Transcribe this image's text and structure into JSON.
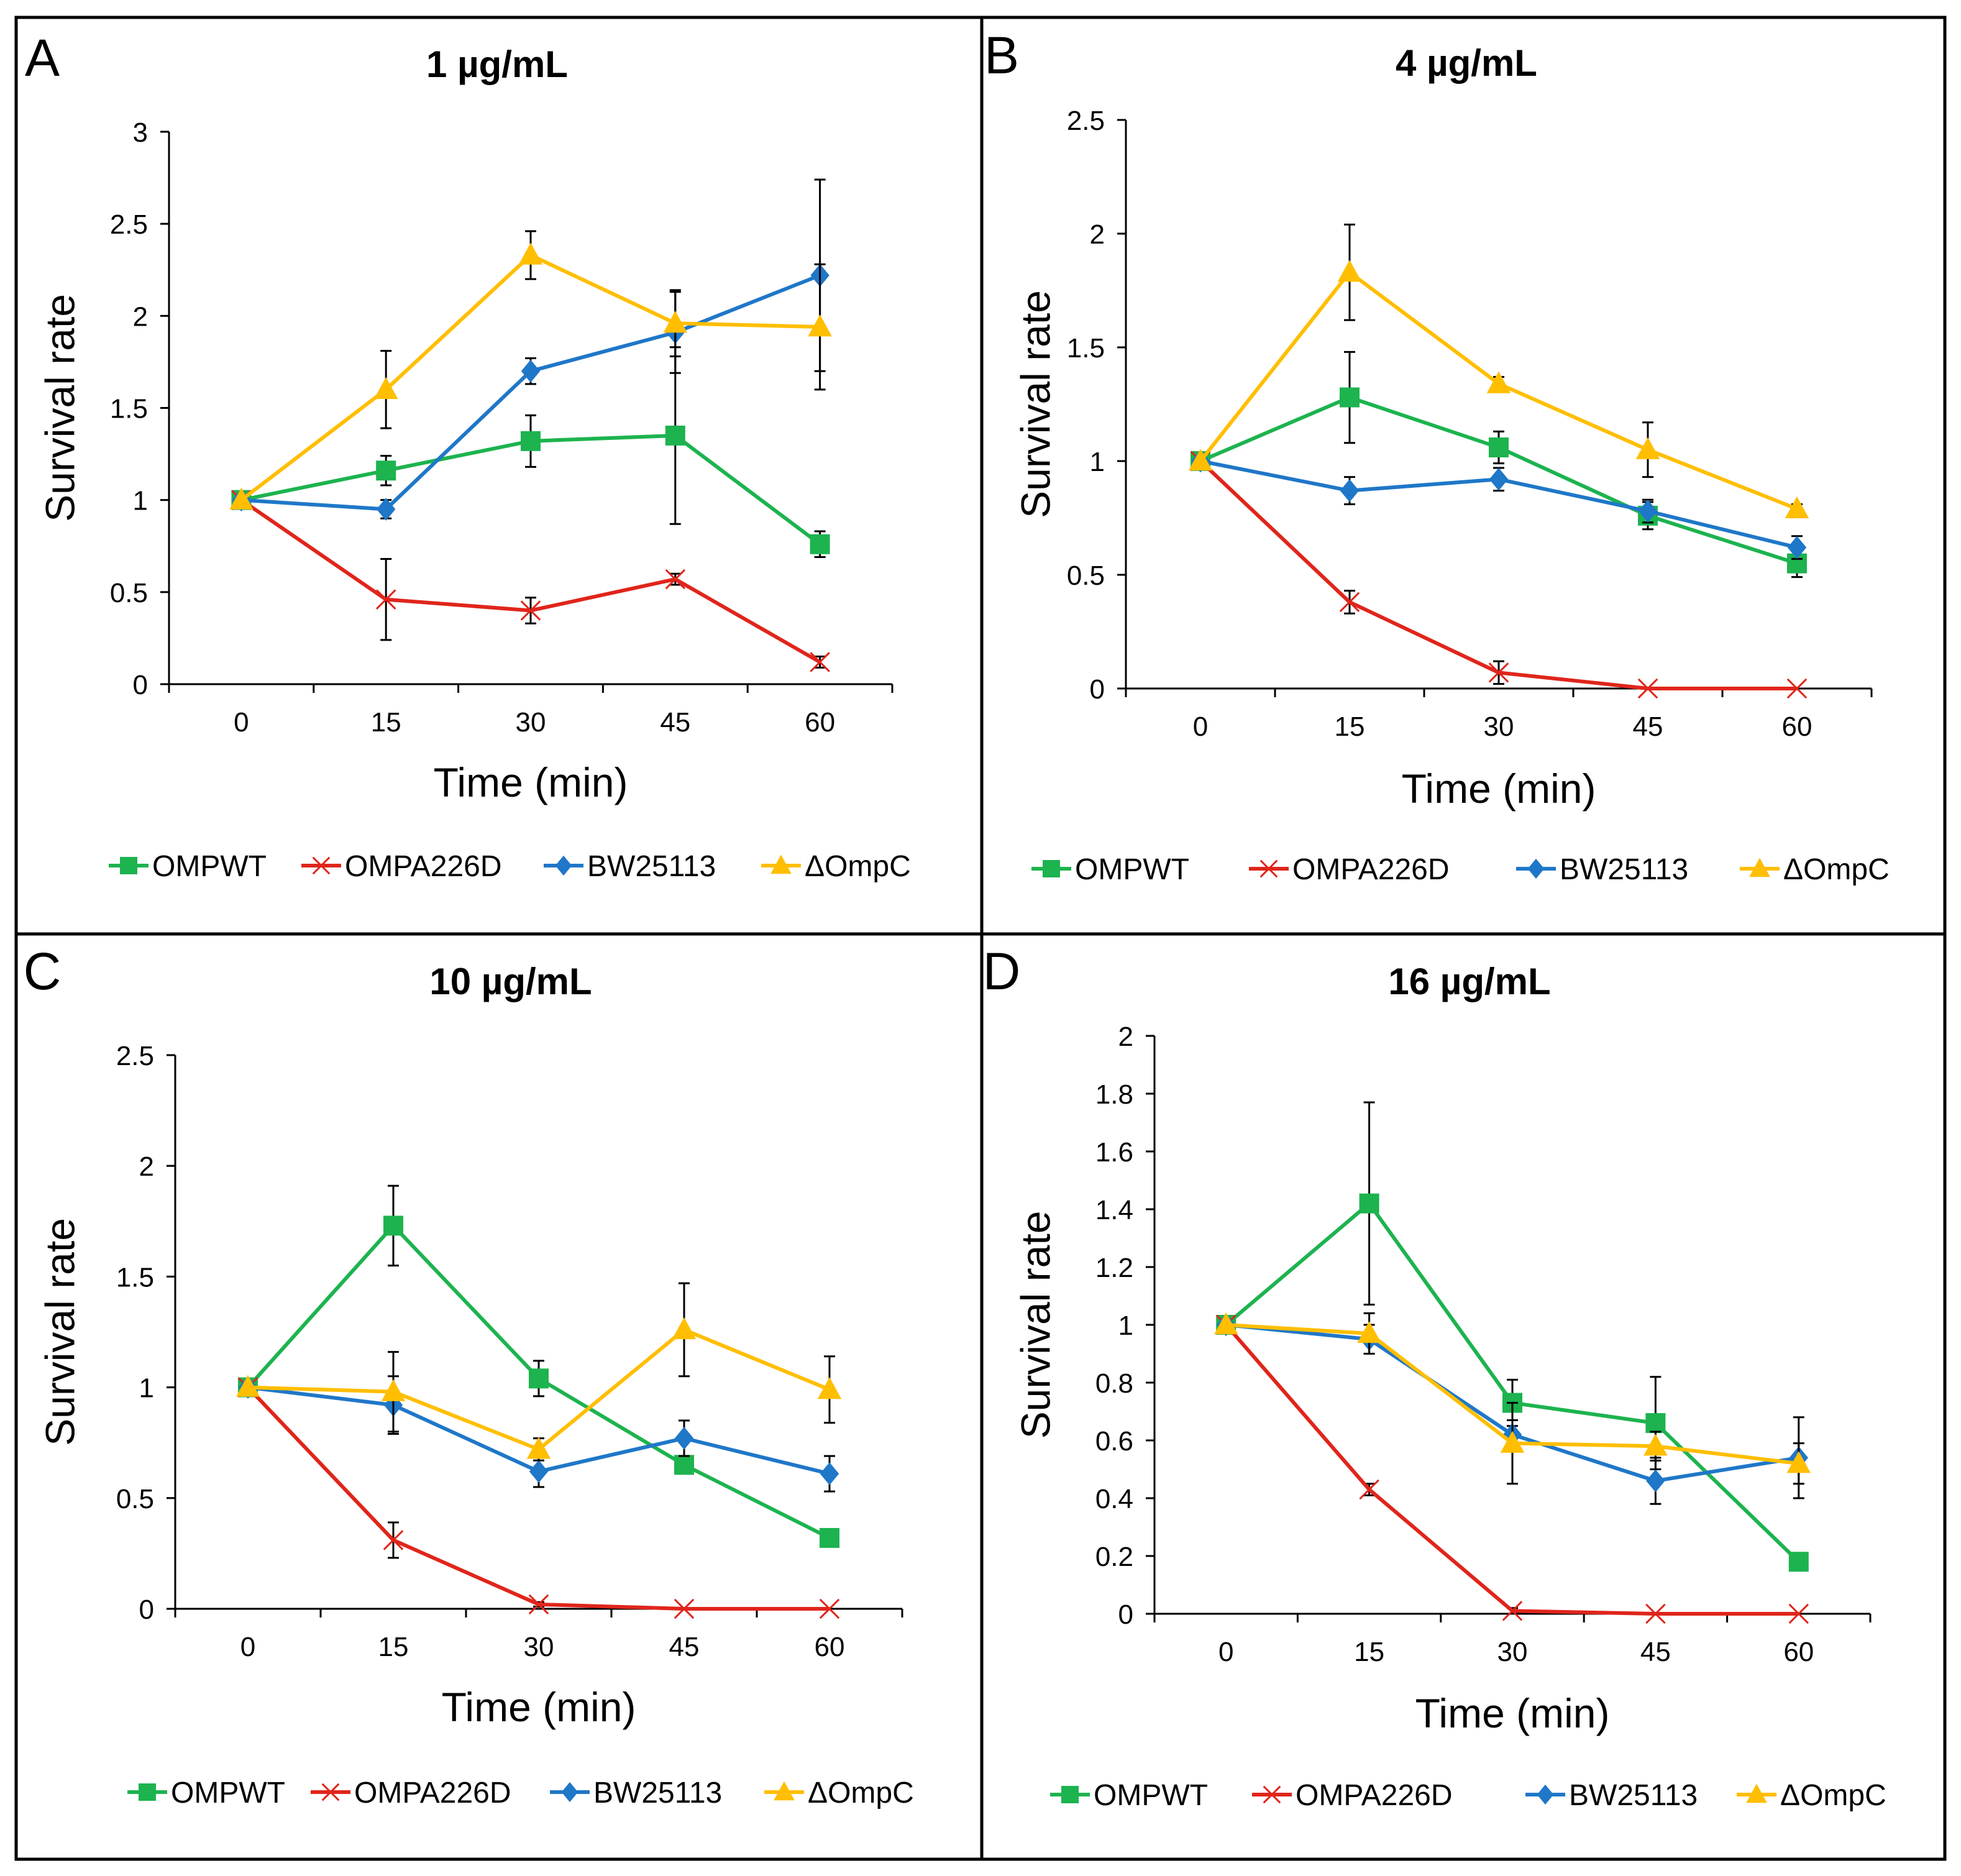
{
  "figure": {
    "series_styles": [
      {
        "name": "OMPWT",
        "color": "#1db34f",
        "marker": "square"
      },
      {
        "name": "OMPA226D",
        "color": "#e0251b",
        "marker": "x"
      },
      {
        "name": "BW25113",
        "color": "#1f77c8",
        "marker": "diamond"
      },
      {
        "name": "ΔOmpC",
        "color": "#ffbe00",
        "marker": "triangle"
      }
    ]
  },
  "chart_data": [
    {
      "panel_label": "A",
      "type": "line",
      "title": "1 µg/mL",
      "xlabel": "Time (min)",
      "ylabel": "Survival rate",
      "categories": [
        "0",
        "15",
        "30",
        "45",
        "60"
      ],
      "ylim": [
        0,
        3
      ],
      "yticks": [
        "0",
        "0.5",
        "1",
        "1.5",
        "2",
        "2.5",
        "3"
      ],
      "legend_position": "bottom",
      "series": [
        {
          "name": "OMPWT",
          "values": [
            1.0,
            1.16,
            1.32,
            1.35,
            0.76
          ],
          "errors": [
            0,
            0.08,
            0.14,
            0.48,
            0.07
          ]
        },
        {
          "name": "OMPA226D",
          "values": [
            1.0,
            0.46,
            0.4,
            0.57,
            0.12
          ],
          "errors": [
            0,
            0.22,
            0.07,
            0.03,
            0.03
          ]
        },
        {
          "name": "BW25113",
          "values": [
            1.0,
            0.95,
            1.7,
            1.91,
            2.22
          ],
          "errors": [
            0,
            0.05,
            0.07,
            0.22,
            0.52
          ]
        },
        {
          "name": "ΔOmpC",
          "values": [
            1.0,
            1.6,
            2.33,
            1.96,
            1.94
          ],
          "errors": [
            0,
            0.21,
            0.13,
            0.18,
            0.34
          ]
        }
      ]
    },
    {
      "panel_label": "B",
      "type": "line",
      "title": "4 µg/mL",
      "xlabel": "Time (min)",
      "ylabel": "Survival rate",
      "categories": [
        "0",
        "15",
        "30",
        "45",
        "60"
      ],
      "ylim": [
        0,
        2.5
      ],
      "yticks": [
        "0",
        "0.5",
        "1",
        "1.5",
        "2",
        "2.5"
      ],
      "legend_position": "bottom",
      "series": [
        {
          "name": "OMPWT",
          "values": [
            1.0,
            1.28,
            1.06,
            0.76,
            0.55
          ],
          "errors": [
            0,
            0.2,
            0.07,
            0.06,
            0.06
          ]
        },
        {
          "name": "OMPA226D",
          "values": [
            1.0,
            0.38,
            0.07,
            0.0,
            0.0
          ],
          "errors": [
            0,
            0.05,
            0.05,
            0,
            0
          ]
        },
        {
          "name": "BW25113",
          "values": [
            1.0,
            0.87,
            0.92,
            0.78,
            0.62
          ],
          "errors": [
            0,
            0.06,
            0.05,
            0.05,
            0.05
          ]
        },
        {
          "name": "ΔOmpC",
          "values": [
            1.0,
            1.83,
            1.34,
            1.05,
            0.79
          ],
          "errors": [
            0,
            0.21,
            0.03,
            0.12,
            0.02
          ]
        }
      ]
    },
    {
      "panel_label": "C",
      "type": "line",
      "title": "10 µg/mL",
      "xlabel": "Time (min)",
      "ylabel": "Survival rate",
      "categories": [
        "0",
        "15",
        "30",
        "45",
        "60"
      ],
      "ylim": [
        0,
        2.5
      ],
      "yticks": [
        "0",
        "0.5",
        "1",
        "1.5",
        "2",
        "2.5"
      ],
      "legend_position": "bottom",
      "series": [
        {
          "name": "OMPWT",
          "values": [
            1.0,
            1.73,
            1.04,
            0.65,
            0.32
          ],
          "errors": [
            0,
            0.18,
            0.08,
            0.02,
            0.02
          ]
        },
        {
          "name": "OMPA226D",
          "values": [
            1.0,
            0.31,
            0.02,
            0.0,
            0.0
          ],
          "errors": [
            0,
            0.08,
            0.01,
            0,
            0
          ]
        },
        {
          "name": "BW25113",
          "values": [
            1.0,
            0.92,
            0.62,
            0.77,
            0.61
          ],
          "errors": [
            0,
            0.13,
            0.07,
            0.08,
            0.08
          ]
        },
        {
          "name": "ΔOmpC",
          "values": [
            1.0,
            0.98,
            0.72,
            1.26,
            0.99
          ],
          "errors": [
            0,
            0.18,
            0.05,
            0.21,
            0.15
          ]
        }
      ]
    },
    {
      "panel_label": "D",
      "type": "line",
      "title": "16 µg/mL",
      "xlabel": "Time (min)",
      "ylabel": "Survival rate",
      "categories": [
        "0",
        "15",
        "30",
        "45",
        "60"
      ],
      "ylim": [
        0,
        2
      ],
      "yticks": [
        "0",
        "0.2",
        "0.4",
        "0.6",
        "0.8",
        "1",
        "1.2",
        "1.4",
        "1.6",
        "1.8",
        "2"
      ],
      "legend_position": "bottom",
      "series": [
        {
          "name": "OMPWT",
          "values": [
            1.0,
            1.42,
            0.73,
            0.66,
            0.18
          ],
          "errors": [
            0,
            0.35,
            0.08,
            0.16,
            0.02
          ]
        },
        {
          "name": "OMPA226D",
          "values": [
            1.0,
            0.43,
            0.01,
            0.0,
            0.0
          ],
          "errors": [
            0,
            0.02,
            0.01,
            0,
            0
          ]
        },
        {
          "name": "BW25113",
          "values": [
            1.0,
            0.95,
            0.62,
            0.46,
            0.54
          ],
          "errors": [
            0,
            0.05,
            0.05,
            0.08,
            0.14
          ]
        },
        {
          "name": "ΔOmpC",
          "values": [
            1.0,
            0.97,
            0.59,
            0.58,
            0.52
          ],
          "errors": [
            0,
            0.07,
            0.14,
            0.05,
            0.07
          ]
        }
      ]
    }
  ]
}
